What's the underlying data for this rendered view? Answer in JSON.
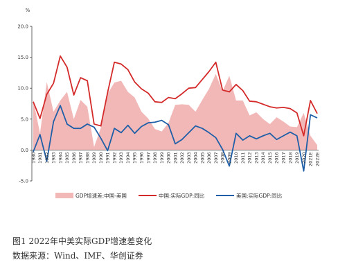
{
  "caption": {
    "figure_title": "图1   2022年中美实际GDP增速差变化",
    "source": "数据来源：Wind、IMF、华创证券"
  },
  "chart_data": {
    "type": "line",
    "unit_label": "%",
    "ylim": [
      -5,
      20
    ],
    "yticks": [
      "-5.0",
      "0.0",
      "5.0",
      "10.0",
      "15.0",
      "20.0"
    ],
    "ytick_values": [
      -5,
      0,
      5,
      10,
      15,
      20
    ],
    "grid": false,
    "legend_position": "bottom",
    "categories": [
      "1980",
      "1981",
      "1982",
      "1983",
      "1984",
      "1985",
      "1986",
      "1987",
      "1988",
      "1989",
      "1990",
      "1991",
      "1992",
      "1993",
      "1994",
      "1995",
      "1996",
      "1997",
      "1998",
      "1999",
      "2000",
      "2001",
      "2002",
      "2003",
      "2004",
      "2005",
      "2006",
      "2007",
      "2008",
      "2009",
      "2010",
      "2011",
      "2012",
      "2013",
      "2014",
      "2015",
      "2016",
      "2017",
      "2018",
      "2019",
      "2020",
      "2021E",
      "2022E"
    ],
    "series": [
      {
        "name": "GDP增速差:中国-美国",
        "kind": "area",
        "color": "#f2b8b8",
        "values": [
          8.1,
          2.7,
          11.0,
          6.2,
          8.0,
          9.4,
          5.0,
          8.1,
          7.0,
          0.5,
          3.6,
          9.1,
          10.9,
          11.2,
          9.4,
          8.5,
          6.2,
          5.1,
          3.4,
          3.0,
          4.4,
          7.3,
          7.4,
          7.3,
          6.2,
          8.1,
          9.9,
          12.3,
          9.5,
          12.0,
          8.0,
          8.0,
          5.6,
          6.1,
          5.0,
          4.2,
          5.3,
          4.6,
          3.8,
          3.7,
          6.0,
          2.3,
          0.8
        ]
      },
      {
        "name": "中国:实际GDP:同比",
        "kind": "line",
        "color": "#d42a2a",
        "values": [
          7.8,
          5.1,
          9.0,
          10.8,
          15.2,
          13.4,
          8.9,
          11.7,
          11.2,
          4.2,
          3.9,
          9.3,
          14.2,
          13.9,
          13.0,
          11.0,
          9.9,
          9.2,
          7.8,
          7.7,
          8.5,
          8.3,
          9.1,
          10.0,
          10.1,
          11.4,
          12.7,
          14.2,
          9.7,
          9.4,
          10.6,
          9.6,
          7.9,
          7.8,
          7.4,
          7.0,
          6.8,
          6.9,
          6.7,
          6.0,
          2.3,
          8.0,
          5.9
        ]
      },
      {
        "name": "美国:实际GDP:同比",
        "kind": "line",
        "color": "#1f5fa8",
        "values": [
          -0.3,
          2.5,
          -1.8,
          4.6,
          7.2,
          4.2,
          3.5,
          3.5,
          4.2,
          3.7,
          1.9,
          -0.1,
          3.5,
          2.8,
          4.0,
          2.7,
          3.8,
          4.4,
          4.5,
          4.8,
          4.1,
          1.0,
          1.7,
          2.8,
          3.9,
          3.5,
          2.8,
          2.0,
          0.1,
          -2.6,
          2.7,
          1.6,
          2.3,
          1.8,
          2.3,
          2.7,
          1.7,
          2.3,
          2.9,
          2.3,
          -3.4,
          5.7,
          5.2
        ]
      }
    ]
  }
}
